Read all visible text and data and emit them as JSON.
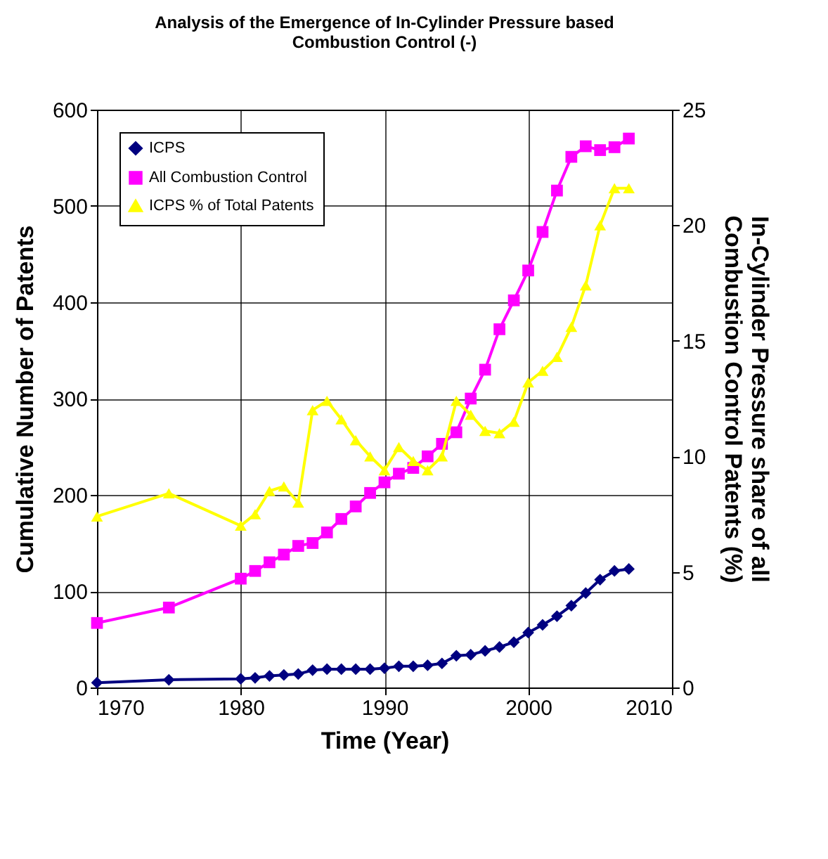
{
  "chart_data": {
    "type": "line",
    "title": "Analysis of the Emergence of In-Cylinder Pressure based Combustion Control (-)",
    "xlabel": "Time (Year)",
    "ylabel": "Cumulative Number of Patents",
    "y2label": "In-Cylinder Pressure share of all Combustion Control Patents (%)",
    "x": [
      1970,
      1975,
      1980,
      1981,
      1982,
      1983,
      1984,
      1985,
      1986,
      1987,
      1988,
      1989,
      1990,
      1991,
      1992,
      1993,
      1994,
      1995,
      1996,
      1997,
      1998,
      1999,
      2000,
      2001,
      2002,
      2003,
      2004,
      2005,
      2006,
      2007
    ],
    "series": [
      {
        "name": "ICPS",
        "color": "#000080",
        "marker": "diamond",
        "values": [
          5,
          8,
          9,
          10,
          12,
          13,
          14,
          18,
          19,
          19,
          19,
          19,
          20,
          22,
          22,
          23,
          25,
          33,
          34,
          38,
          42,
          47,
          57,
          65,
          74,
          85,
          98,
          112,
          121,
          123
        ]
      },
      {
        "name": "All Combustion Control",
        "color": "#ff00ff",
        "marker": "square",
        "values": [
          67,
          83,
          113,
          121,
          130,
          138,
          147,
          150,
          161,
          175,
          188,
          202,
          213,
          222,
          228,
          240,
          253,
          265,
          300,
          330,
          372,
          402,
          433,
          473,
          516,
          551,
          562,
          558,
          561,
          570
        ]
      },
      {
        "name": "ICPS % of Total Patents",
        "color": "#ffff00",
        "marker": "triangle",
        "axis": "y2",
        "values": [
          7.4,
          8.4,
          7.0,
          7.5,
          8.5,
          8.7,
          8.0,
          12.0,
          12.4,
          11.6,
          10.7,
          10.0,
          9.4,
          10.4,
          9.8,
          9.4,
          10.0,
          12.4,
          11.8,
          11.1,
          11.0,
          11.5,
          13.2,
          13.7,
          14.3,
          15.6,
          17.4,
          20.0,
          21.6,
          21.6
        ]
      }
    ],
    "xlim": [
      1970,
      2010
    ],
    "xticks": [
      1970,
      1980,
      1990,
      2000,
      2010
    ],
    "ylim": [
      0,
      600
    ],
    "yticks": [
      0,
      100,
      200,
      300,
      400,
      500,
      600
    ],
    "y2lim": [
      0,
      25
    ],
    "y2ticks": [
      0,
      5,
      10,
      15,
      20,
      25
    ],
    "grid": true,
    "legend": "top left"
  }
}
